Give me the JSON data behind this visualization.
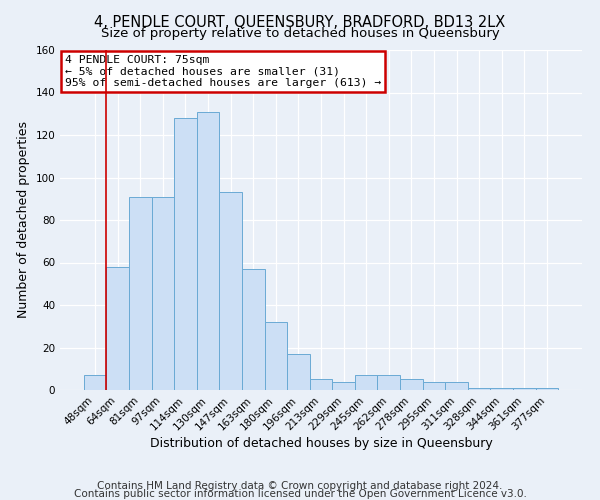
{
  "title": "4, PENDLE COURT, QUEENSBURY, BRADFORD, BD13 2LX",
  "subtitle": "Size of property relative to detached houses in Queensbury",
  "xlabel": "Distribution of detached houses by size in Queensbury",
  "ylabel": "Number of detached properties",
  "categories": [
    "48sqm",
    "64sqm",
    "81sqm",
    "97sqm",
    "114sqm",
    "130sqm",
    "147sqm",
    "163sqm",
    "180sqm",
    "196sqm",
    "213sqm",
    "229sqm",
    "245sqm",
    "262sqm",
    "278sqm",
    "295sqm",
    "311sqm",
    "328sqm",
    "344sqm",
    "361sqm",
    "377sqm"
  ],
  "values": [
    7,
    58,
    91,
    91,
    128,
    131,
    93,
    57,
    32,
    17,
    5,
    4,
    7,
    7,
    5,
    4,
    4,
    1,
    1,
    1,
    1
  ],
  "bar_color": "#ccdff5",
  "bar_edge_color": "#6aaad4",
  "annotation_text": "4 PENDLE COURT: 75sqm\n← 5% of detached houses are smaller (31)\n95% of semi-detached houses are larger (613) →",
  "annotation_box_color": "#ffffff",
  "annotation_box_edge": "#cc0000",
  "red_line_index": 1,
  "ylim": [
    0,
    160
  ],
  "yticks": [
    0,
    20,
    40,
    60,
    80,
    100,
    120,
    140,
    160
  ],
  "footer1": "Contains HM Land Registry data © Crown copyright and database right 2024.",
  "footer2": "Contains public sector information licensed under the Open Government Licence v3.0.",
  "bg_color": "#eaf0f8",
  "plot_bg_color": "#eaf0f8",
  "title_fontsize": 10.5,
  "xlabel_fontsize": 9,
  "ylabel_fontsize": 9,
  "tick_fontsize": 7.5,
  "footer_fontsize": 7.5
}
